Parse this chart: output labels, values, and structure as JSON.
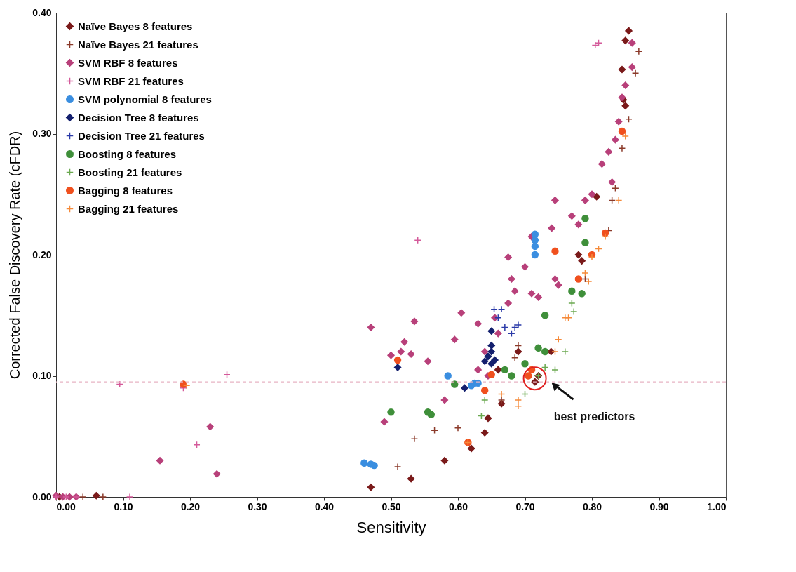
{
  "chart_data": {
    "type": "scatter",
    "xlabel": "Sensitivity",
    "ylabel": "Corrected False Discovery Rate (cFDR)",
    "xlim": [
      0,
      1
    ],
    "xticks": [
      {
        "value": 0,
        "label": "0.00"
      },
      {
        "value": 0.1,
        "label": "0.10"
      },
      {
        "value": 0.2,
        "label": "0.20"
      },
      {
        "value": 0.3,
        "label": "0.30"
      },
      {
        "value": 0.4,
        "label": "0.40"
      },
      {
        "value": 0.5,
        "label": "0.50"
      },
      {
        "value": 0.6,
        "label": "0.60"
      },
      {
        "value": 0.7,
        "label": "0.70"
      },
      {
        "value": 0.8,
        "label": "0.80"
      },
      {
        "value": 0.9,
        "label": "0.90"
      },
      {
        "value": 1,
        "label": "1.00"
      }
    ],
    "ylim": [
      0,
      0.4
    ],
    "yticks": [
      {
        "value": 0,
        "label": "0.00"
      },
      {
        "value": 0.1,
        "label": "0.10"
      },
      {
        "value": 0.2,
        "label": "0.20"
      },
      {
        "value": 0.3,
        "label": "0.30"
      },
      {
        "value": 0.4,
        "label": "0.40"
      }
    ],
    "grid": false,
    "legend": "top left",
    "ref_lines": [
      {
        "axis": "y",
        "value": 0.095,
        "color": "#e8b4c4",
        "line_style": "dashed"
      }
    ],
    "annotations": [
      {
        "text": "best predictors",
        "x": 0.72,
        "y": 0.095
      }
    ],
    "series": [
      {
        "name": "Naïve Bayes 8 features",
        "color": "#7a1a1a",
        "marker": "diamond",
        "x": [
          0.855,
          0.85,
          0.845,
          0.847,
          0.85,
          0.807,
          0.78,
          0.785,
          0.739,
          0.72,
          0.715,
          0.69,
          0.66,
          0.665,
          0.645,
          0.64,
          0.62,
          0.58,
          0.53,
          0.47,
          0.06,
          0.005
        ],
        "values": [
          0.385,
          0.377,
          0.353,
          0.328,
          0.323,
          0.248,
          0.2,
          0.195,
          0.12,
          0.1,
          0.095,
          0.12,
          0.105,
          0.077,
          0.065,
          0.053,
          0.04,
          0.03,
          0.015,
          0.008,
          0.001,
          0
        ]
      },
      {
        "name": "Naïve Bayes 21 features",
        "color": "#8b3a2a",
        "marker": "cross",
        "x": [
          0.87,
          0.865,
          0.855,
          0.845,
          0.835,
          0.83,
          0.825,
          0.79,
          0.69,
          0.685,
          0.665,
          0.6,
          0.565,
          0.535,
          0.51,
          0.07,
          0.04,
          0.02
        ],
        "values": [
          0.368,
          0.35,
          0.312,
          0.288,
          0.255,
          0.245,
          0.22,
          0.18,
          0.125,
          0.115,
          0.08,
          0.057,
          0.055,
          0.048,
          0.025,
          0,
          0,
          0
        ]
      },
      {
        "name": "SVM RBF 8 features",
        "color": "#b8407a",
        "marker": "diamond",
        "x": [
          0.86,
          0.86,
          0.85,
          0.845,
          0.84,
          0.835,
          0.825,
          0.815,
          0.83,
          0.79,
          0.8,
          0.745,
          0.74,
          0.77,
          0.78,
          0.71,
          0.675,
          0.7,
          0.745,
          0.68,
          0.685,
          0.71,
          0.72,
          0.75,
          0.605,
          0.63,
          0.655,
          0.675,
          0.66,
          0.64,
          0.595,
          0.535,
          0.47,
          0.52,
          0.5,
          0.53,
          0.555,
          0.515,
          0.63,
          0.645,
          0.58,
          0.49,
          0.23,
          0.155,
          0.24,
          0,
          0.01,
          0.02,
          0.03
        ],
        "values": [
          0.375,
          0.355,
          0.34,
          0.33,
          0.31,
          0.295,
          0.285,
          0.275,
          0.26,
          0.245,
          0.25,
          0.245,
          0.222,
          0.232,
          0.225,
          0.215,
          0.198,
          0.19,
          0.18,
          0.18,
          0.17,
          0.168,
          0.165,
          0.175,
          0.152,
          0.143,
          0.148,
          0.16,
          0.135,
          0.12,
          0.13,
          0.145,
          0.14,
          0.128,
          0.117,
          0.118,
          0.112,
          0.12,
          0.105,
          0.1,
          0.08,
          0.062,
          0.058,
          0.03,
          0.019,
          0.001,
          0,
          0,
          0
        ]
      },
      {
        "name": "SVM RBF 21 features",
        "color": "#d45a9a",
        "marker": "cross",
        "x": [
          0.81,
          0.805,
          0.54,
          0.255,
          0.095,
          0.19,
          0.21,
          0,
          0.11,
          0.015,
          0.03
        ],
        "values": [
          0.375,
          0.373,
          0.212,
          0.101,
          0.093,
          0.09,
          0.043,
          0,
          0,
          0,
          0
        ]
      },
      {
        "name": "SVM polynomial 8 features",
        "color": "#3a8ee0",
        "marker": "circle",
        "x": [
          0.715,
          0.715,
          0.715,
          0.715,
          0.585,
          0.63,
          0.625,
          0.62,
          0.46,
          0.47,
          0.475
        ],
        "values": [
          0.217,
          0.212,
          0.207,
          0.2,
          0.1,
          0.094,
          0.094,
          0.092,
          0.028,
          0.027,
          0.026
        ]
      },
      {
        "name": "Decision Tree 8 features",
        "color": "#14206e",
        "marker": "diamond",
        "x": [
          0.65,
          0.65,
          0.65,
          0.645,
          0.64,
          0.65,
          0.655,
          0.61,
          0.51
        ],
        "values": [
          0.137,
          0.125,
          0.12,
          0.116,
          0.112,
          0.11,
          0.113,
          0.09,
          0.107
        ]
      },
      {
        "name": "Decision Tree 21 features",
        "color": "#2a3aa8",
        "marker": "cross",
        "x": [
          0.654,
          0.665,
          0.66,
          0.67,
          0.69,
          0.685,
          0.68
        ],
        "values": [
          0.155,
          0.155,
          0.148,
          0.14,
          0.142,
          0.14,
          0.135
        ]
      },
      {
        "name": "Boosting 8 features",
        "color": "#3f8f3a",
        "marker": "circle",
        "x": [
          0.79,
          0.79,
          0.77,
          0.785,
          0.73,
          0.72,
          0.73,
          0.67,
          0.68,
          0.7,
          0.595,
          0.555,
          0.56,
          0.5
        ],
        "values": [
          0.23,
          0.21,
          0.17,
          0.168,
          0.15,
          0.123,
          0.12,
          0.105,
          0.1,
          0.11,
          0.093,
          0.07,
          0.068,
          0.07
        ]
      },
      {
        "name": "Boosting 21 features",
        "color": "#6aa84f",
        "marker": "cross",
        "x": [
          0.77,
          0.773,
          0.76,
          0.73,
          0.72,
          0.745,
          0.64,
          0.635,
          0.7
        ],
        "values": [
          0.16,
          0.153,
          0.12,
          0.107,
          0.1,
          0.105,
          0.08,
          0.067,
          0.085
        ]
      },
      {
        "name": "Bagging 8 features",
        "color": "#f0501e",
        "marker": "circle",
        "x": [
          0.845,
          0.82,
          0.745,
          0.78,
          0.8,
          0.71,
          0.705,
          0.65,
          0.64,
          0.51,
          0.615,
          0.19
        ],
        "values": [
          0.302,
          0.218,
          0.203,
          0.18,
          0.2,
          0.105,
          0.1,
          0.101,
          0.088,
          0.113,
          0.045,
          0.093
        ]
      },
      {
        "name": "Bagging 21 features",
        "color": "#f58a3a",
        "marker": "cross",
        "x": [
          0.85,
          0.84,
          0.82,
          0.81,
          0.8,
          0.79,
          0.795,
          0.75,
          0.745,
          0.76,
          0.765,
          0.69,
          0.69,
          0.665,
          0.615,
          0.195
        ],
        "values": [
          0.298,
          0.245,
          0.215,
          0.205,
          0.198,
          0.185,
          0.178,
          0.13,
          0.12,
          0.148,
          0.148,
          0.08,
          0.075,
          0.085,
          0.045,
          0.092
        ]
      }
    ]
  }
}
